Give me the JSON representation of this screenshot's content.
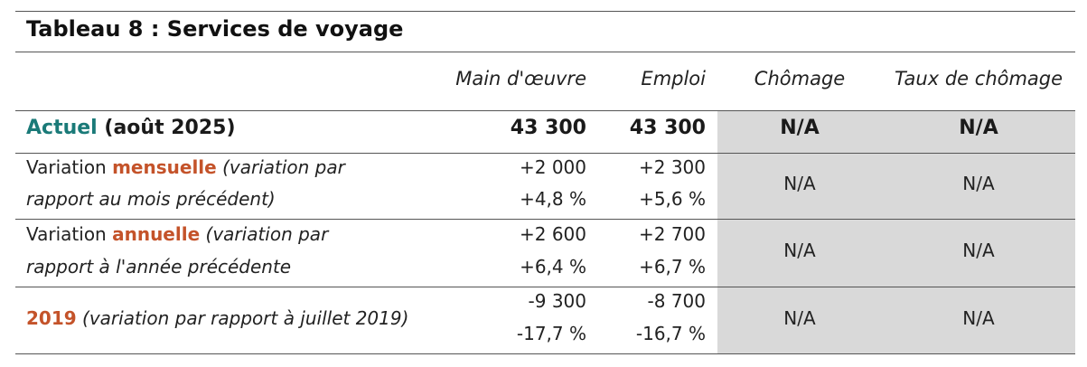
{
  "table": {
    "title": "Tableau 8 : Services de voyage",
    "headers": [
      "Main d'œuvre",
      "Emploi",
      "Chômage",
      "Taux de chômage"
    ],
    "current": {
      "label_colored": "Actuel",
      "label_rest": "(août 2025)",
      "values": [
        "43 300",
        "43 300",
        "N/A",
        "N/A"
      ]
    },
    "monthly": {
      "prefix": "Variation ",
      "keyword": "mensuelle",
      "desc_line1": "(variation par",
      "desc_line2": "rapport au mois précédent)",
      "main_abs": "+2 000",
      "main_pct": "+4,8 %",
      "emp_abs": "+2 300",
      "emp_pct": "+5,6 %",
      "chomage": "N/A",
      "taux": "N/A"
    },
    "annual": {
      "prefix": "Variation ",
      "keyword": "annuelle",
      "desc_line1": "(variation par",
      "desc_line2": "rapport à l'année précédente",
      "main_abs": "+2 600",
      "main_pct": "+6,4 %",
      "emp_abs": "+2 700",
      "emp_pct": "+6,7 %",
      "chomage": "N/A",
      "taux": "N/A"
    },
    "since2019": {
      "keyword": "2019",
      "desc": "(variation par rapport à juillet 2019)",
      "main_abs": "-9 300",
      "main_pct": "-17,7 %",
      "emp_abs": "-8 700",
      "emp_pct": "-16,7 %",
      "chomage": "N/A",
      "taux": "N/A"
    }
  },
  "colors": {
    "accent_teal": "#1a7a78",
    "accent_orange": "#c4532a",
    "shade": "#d9d9d9"
  }
}
